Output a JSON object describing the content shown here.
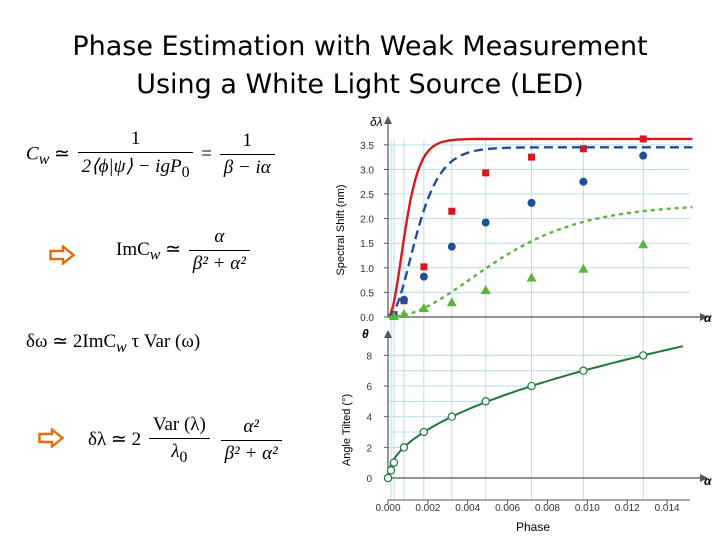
{
  "slide": {
    "title_line1": "Phase Estimation with Weak Measurement",
    "title_line2": "Using a White Light Source (LED)"
  },
  "equations": {
    "eq1": {
      "lhs": "C",
      "lhs_sub": "w",
      "rel": "≃",
      "f1_num": "1",
      "f1_den": "2⟨ϕ|ψ⟩ − igP",
      "f1_den_sub": "0",
      "eq": "=",
      "f2_num": "1",
      "f2_den": "β − iα"
    },
    "eq2": {
      "lhs": "ImC",
      "lhs_sub": "w",
      "rel": "≃",
      "num": "α",
      "den": "β² + α²"
    },
    "eq3": {
      "text": "δω ≃ 2ImC",
      "sub": "w",
      "rest": "τ Var (ω)"
    },
    "eq4": {
      "lhs": "δλ ≃ 2",
      "f1_num": "Var (λ)",
      "f1_den": "λ",
      "f1_den_sub": "0",
      "f2_num": "α²",
      "f2_den": "β² + α²"
    }
  },
  "arrow_color": "#E46C0A",
  "chart_data": [
    {
      "type": "line",
      "name": "spectral-shift",
      "axis_symbol": "δλ",
      "ylabel": "Spectral Shift (nm)",
      "x_symbol": "α",
      "xlim": [
        0,
        0.0155
      ],
      "ylim": [
        0,
        3.7
      ],
      "y_ticks": [
        "0.0",
        "0.5",
        "1.0",
        "1.5",
        "2.0",
        "2.5",
        "3.0",
        "3.5"
      ],
      "y_tick_values": [
        0,
        0.5,
        1.0,
        1.5,
        2.0,
        2.5,
        3.0,
        3.5
      ],
      "grid": true,
      "series": [
        {
          "name": "red",
          "color": "#D7191C",
          "marker": "square",
          "x": [
            0.0003,
            0.0008,
            0.0018,
            0.0032,
            0.0049,
            0.0072,
            0.0098,
            0.0128
          ],
          "y": [
            0.05,
            0.33,
            1.02,
            2.15,
            2.93,
            3.25,
            3.42,
            3.62
          ],
          "fit_max": 3.62,
          "fit_k": 1000
        },
        {
          "name": "blue",
          "color": "#1F4E9C",
          "marker": "circle",
          "x": [
            0.0003,
            0.0008,
            0.0018,
            0.0032,
            0.0049,
            0.0072,
            0.0098,
            0.0128
          ],
          "y": [
            0.03,
            0.35,
            0.82,
            1.43,
            1.92,
            2.32,
            2.75,
            3.28
          ],
          "fit_max": 3.45,
          "fit_k": 600
        },
        {
          "name": "green",
          "color": "#5BB53A",
          "marker": "triangle",
          "x": [
            0.0003,
            0.0008,
            0.0018,
            0.0032,
            0.0049,
            0.0072,
            0.0098,
            0.0128
          ],
          "y": [
            0.02,
            0.06,
            0.18,
            0.3,
            0.55,
            0.8,
            0.98,
            1.48
          ],
          "fit_max": 2.3,
          "fit_k": 160
        }
      ]
    },
    {
      "type": "line",
      "name": "angle-tilted",
      "axis_symbol": "θ",
      "ylabel": "Angle Tilted (°)",
      "xlabel": "Phase",
      "x_symbol": "α",
      "xlim": [
        0,
        0.0155
      ],
      "ylim": [
        0,
        9.2
      ],
      "y_ticks": [
        "0",
        "2",
        "4",
        "6",
        "8"
      ],
      "y_tick_values": [
        0,
        2,
        4,
        6,
        8
      ],
      "x_ticks": [
        "0.000",
        "0.002",
        "0.004",
        "0.006",
        "0.008",
        "0.010",
        "0.012",
        "0.014"
      ],
      "x_tick_values": [
        0,
        0.002,
        0.004,
        0.006,
        0.008,
        0.01,
        0.012,
        0.014
      ],
      "grid": true,
      "series": [
        {
          "name": "angle",
          "color": "#1E7A3C",
          "marker": "open-circle",
          "x": [
            0.0,
            0.00015,
            0.0003,
            0.0008,
            0.0018,
            0.0032,
            0.0049,
            0.0072,
            0.0098,
            0.0128
          ],
          "y": [
            0,
            0.5,
            1.0,
            2.0,
            3.0,
            4.0,
            5.0,
            6.0,
            7.0,
            8.0
          ],
          "fit_scale": 70.7,
          "fit_max_x": 0.0148
        }
      ]
    }
  ]
}
